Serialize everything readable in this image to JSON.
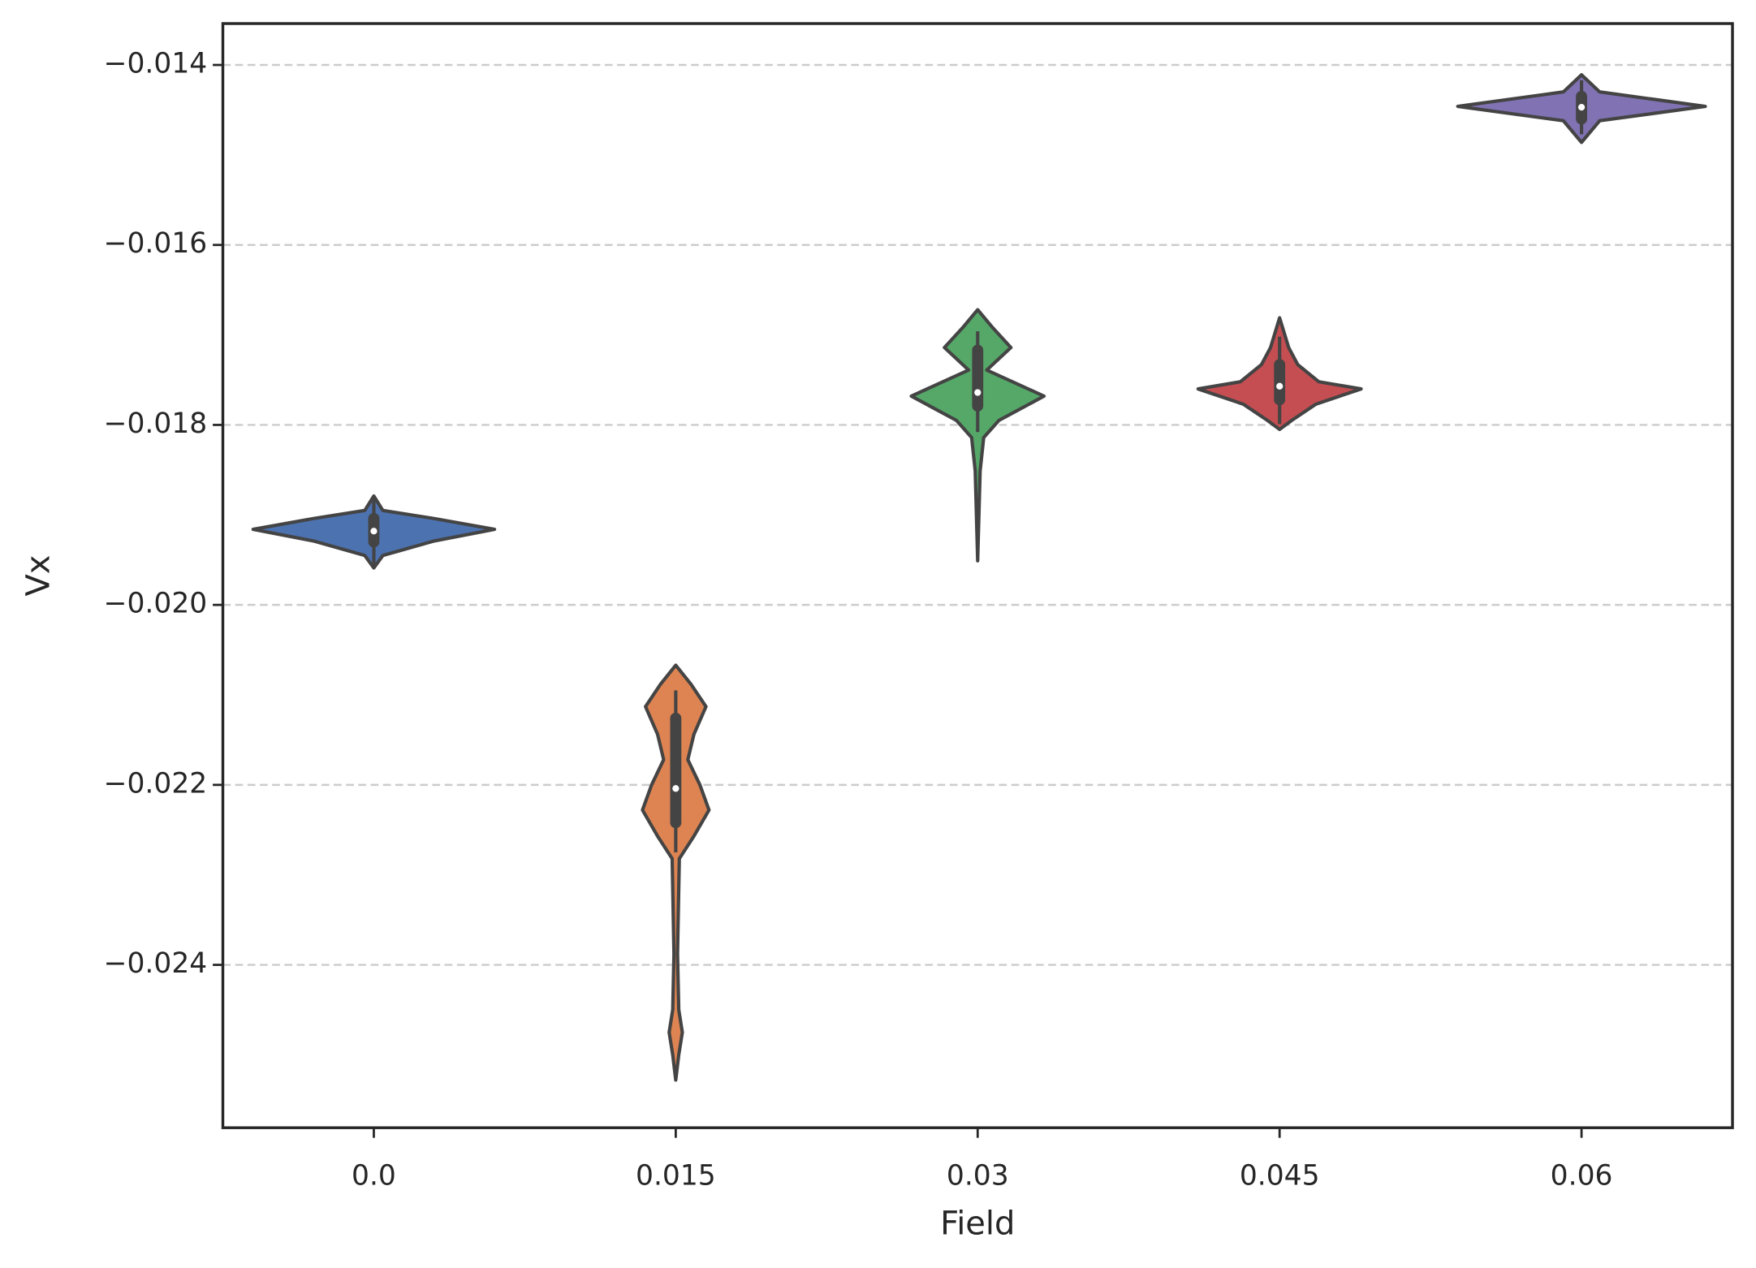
{
  "chart_data": {
    "type": "violin",
    "x_label": "Field",
    "y_label": "Vx",
    "categories": [
      "0.0",
      "0.015",
      "0.03",
      "0.045",
      "0.06"
    ],
    "ylim": [
      -0.02581,
      -0.01354
    ],
    "yticks": [
      {
        "value": -0.024,
        "label": "−0.024"
      },
      {
        "value": -0.022,
        "label": "−0.022"
      },
      {
        "value": -0.02,
        "label": "−0.020"
      },
      {
        "value": -0.018,
        "label": "−0.018"
      },
      {
        "value": -0.016,
        "label": "−0.016"
      },
      {
        "value": -0.014,
        "label": "−0.014"
      }
    ],
    "grid": true,
    "violins": [
      {
        "color": "#4c72b0",
        "kde_y": [
          -0.01879,
          -0.01895,
          -0.01904,
          -0.01916,
          -0.01929,
          -0.01945,
          -0.01959
        ],
        "kde_width": [
          0,
          0.03,
          0.2,
          0.4,
          0.2,
          0.03,
          0
        ],
        "min": -0.01959,
        "q1": -0.0193,
        "median": -0.01918,
        "q3": -0.01904,
        "max": -0.01879
      },
      {
        "color": "#dd8452",
        "kde_y": [
          -0.02067,
          -0.02088,
          -0.02113,
          -0.02144,
          -0.02172,
          -0.022,
          -0.02228,
          -0.02257,
          -0.02282,
          -0.02388,
          -0.0245,
          -0.02475,
          -0.025,
          -0.02528
        ],
        "kde_width": [
          0,
          0.05,
          0.1,
          0.06,
          0.04,
          0.08,
          0.11,
          0.06,
          0.012,
          0.006,
          0.01,
          0.022,
          0.01,
          0
        ],
        "min": -0.02275,
        "q1": -0.02242,
        "median": -0.02204,
        "q3": -0.02126,
        "max": -0.02095
      },
      {
        "color": "#55a868",
        "kde_y": [
          -0.01672,
          -0.01692,
          -0.01714,
          -0.01739,
          -0.01768,
          -0.01795,
          -0.01814,
          -0.01851,
          -0.01951
        ],
        "kde_width": [
          0,
          0.05,
          0.11,
          0.03,
          0.22,
          0.07,
          0.02,
          0.008,
          0
        ],
        "min": -0.01808,
        "q1": -0.01779,
        "median": -0.01764,
        "q3": -0.01717,
        "max": -0.01696
      },
      {
        "color": "#c44e52",
        "kde_y": [
          -0.01681,
          -0.01714,
          -0.01733,
          -0.01752,
          -0.0176,
          -0.01777,
          -0.01795,
          -0.01805
        ],
        "kde_width": [
          0,
          0.03,
          0.06,
          0.13,
          0.27,
          0.12,
          0.04,
          0
        ],
        "min": -0.01799,
        "q1": -0.01772,
        "median": -0.01757,
        "q3": -0.01733,
        "max": -0.01702
      },
      {
        "color": "#8172b3",
        "kde_y": [
          -0.01411,
          -0.0143,
          -0.01446,
          -0.01462,
          -0.01486
        ],
        "kde_width": [
          0,
          0.06,
          0.41,
          0.06,
          0
        ],
        "min": -0.01477,
        "q1": -0.0146,
        "median": -0.01447,
        "q3": -0.01435,
        "max": -0.01417
      }
    ]
  }
}
